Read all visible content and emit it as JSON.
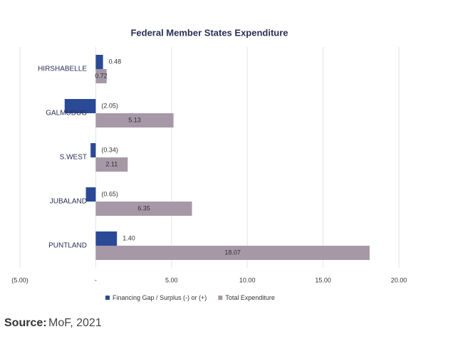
{
  "chart_data": {
    "type": "bar",
    "orientation": "horizontal",
    "title": "Federal Member States Expenditure",
    "categories": [
      "HIRSHABELLE",
      "GALMUDUG",
      "S.WEST",
      "JUBALAND",
      "PUNTLAND"
    ],
    "series": [
      {
        "name": "Financing Gap / Surplus (-) or (+)",
        "color": "#2b4a96",
        "values": [
          0.48,
          -2.05,
          -0.34,
          -0.65,
          1.4
        ],
        "value_labels": [
          "0.48",
          "(2.05)",
          "(0.34)",
          "(0.65)",
          "1.40"
        ]
      },
      {
        "name": "Total Expenditure",
        "color": "#a798a7",
        "values": [
          0.72,
          5.13,
          2.11,
          6.35,
          18.07
        ],
        "value_labels": [
          "0.72",
          "5.13",
          "2.11",
          "6.35",
          "18.07"
        ]
      }
    ],
    "xlim": [
      -5,
      20
    ],
    "xticks": [
      {
        "value": -5,
        "label": "(5.00)"
      },
      {
        "value": 0,
        "label": "-"
      },
      {
        "value": 5,
        "label": "5.00"
      },
      {
        "value": 10,
        "label": "10.00"
      },
      {
        "value": 15,
        "label": "15.00"
      },
      {
        "value": 20,
        "label": "20.00"
      }
    ],
    "grid": true
  },
  "source": {
    "label": "Source:",
    "text": "MoF, 2021"
  }
}
